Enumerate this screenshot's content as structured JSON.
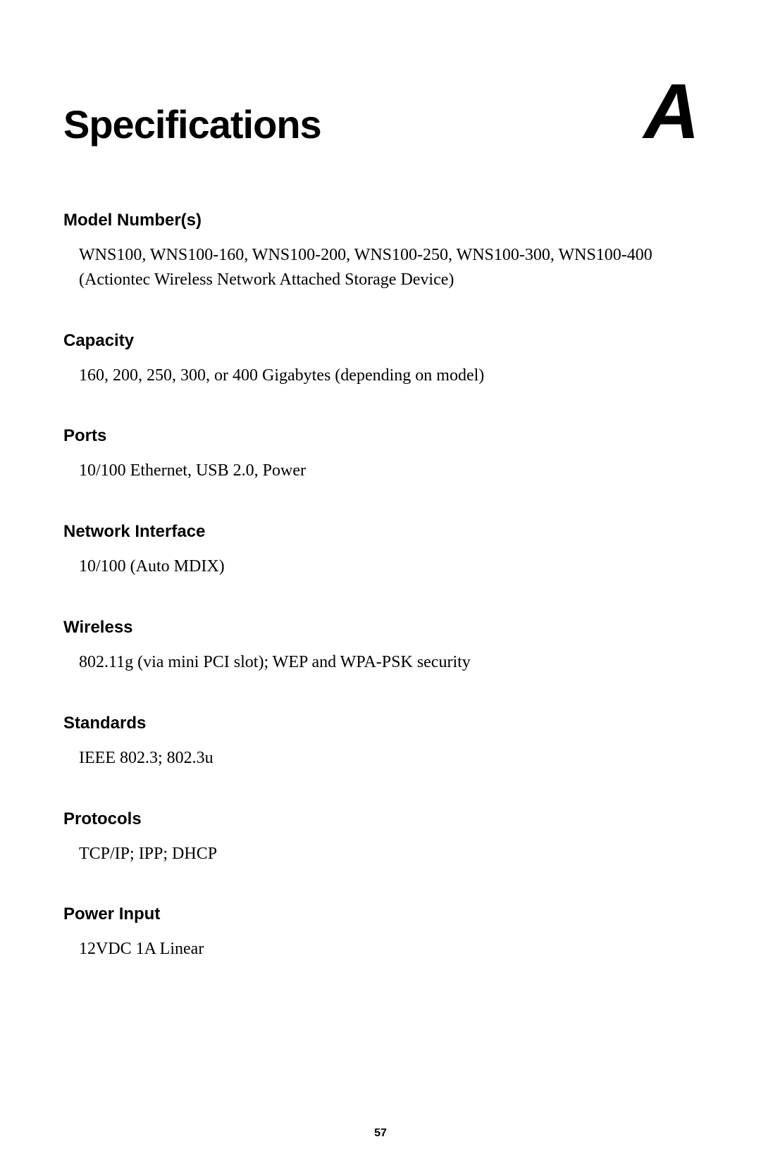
{
  "page": {
    "title": "Specifications",
    "appendix_letter": "A",
    "page_number": "57",
    "background_color": "#ffffff",
    "text_color": "#000000",
    "title_fontsize": 56,
    "heading_fontsize": 24,
    "body_fontsize": 24,
    "appendix_fontsize": 110,
    "page_number_fontsize": 16
  },
  "sections": {
    "model_numbers": {
      "heading": "Model Number(s)",
      "body": "WNS100, WNS100-160, WNS100-200, WNS100-250, WNS100-300, WNS100-400 (Actiontec Wireless Network Attached Storage Device)"
    },
    "capacity": {
      "heading": "Capacity",
      "body": "160, 200, 250, 300, or 400 Gigabytes (depending on model)"
    },
    "ports": {
      "heading": "Ports",
      "body": "10/100 Ethernet, USB 2.0, Power"
    },
    "network_interface": {
      "heading": "Network Interface",
      "body": "10/100 (Auto MDIX)"
    },
    "wireless": {
      "heading": "Wireless",
      "body": "802.11g (via mini PCI slot); WEP and WPA-PSK security"
    },
    "standards": {
      "heading": "Standards",
      "body": "IEEE 802.3; 802.3u"
    },
    "protocols": {
      "heading": "Protocols",
      "body": "TCP/IP; IPP; DHCP"
    },
    "power_input": {
      "heading": "Power Input",
      "body": "12VDC 1A Linear"
    }
  }
}
